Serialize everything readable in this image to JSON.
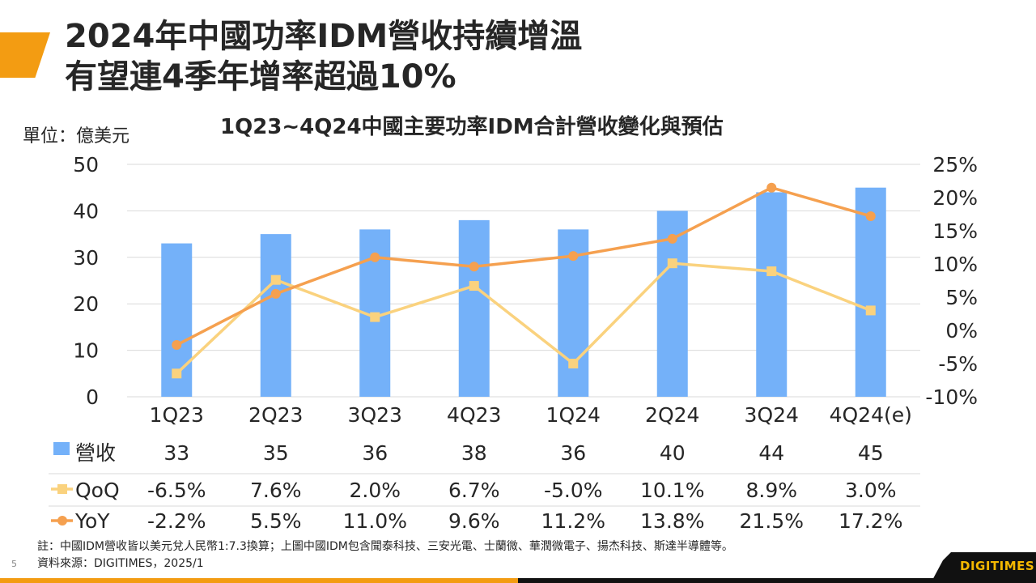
{
  "slide": {
    "title_line1": "2024年中國功率IDM營收持續增溫",
    "title_line2": "有望連4季年增率超過10%",
    "unit_label": "單位：億美元",
    "note": "註：中國IDM營收皆以美元兌人民幣1:7.3換算；上圖中國IDM包含聞泰科技、三安光電、士蘭微、華潤微電子、揚杰科技、斯達半導體等。",
    "source": "資料來源：DIGITIMES，2025/1",
    "page_number": "5",
    "logo": "DIGITIMES",
    "colors": {
      "accent": "#f39c12",
      "bar": "#74b1f9",
      "qoq": "#fad27e",
      "yoy": "#f5a04f"
    }
  },
  "chart_data": {
    "type": "bar",
    "title": "1Q23~4Q24中國主要功率IDM合計營收變化與預估",
    "categories": [
      "1Q23",
      "2Q23",
      "3Q23",
      "4Q23",
      "1Q24",
      "2Q24",
      "3Q24",
      "4Q24(e)"
    ],
    "ylabel": "單位：億美元",
    "ylim": [
      0,
      50
    ],
    "yticks": [
      "0",
      "10",
      "20",
      "30",
      "40",
      "50"
    ],
    "y2lim": [
      -10,
      25
    ],
    "y2ticks": [
      "-10%",
      "-5%",
      "0%",
      "5%",
      "10%",
      "15%",
      "20%",
      "25%"
    ],
    "grid": true,
    "series": [
      {
        "name": "營收",
        "type": "bar",
        "axis": "left",
        "values": [
          33,
          35,
          36,
          38,
          36,
          40,
          44,
          45
        ],
        "labels": [
          "33",
          "35",
          "36",
          "38",
          "36",
          "40",
          "44",
          "45"
        ]
      },
      {
        "name": "QoQ",
        "type": "line",
        "marker": "square",
        "axis": "right",
        "values": [
          -6.5,
          7.6,
          2.0,
          6.7,
          -5.0,
          10.1,
          8.9,
          3.0
        ],
        "labels": [
          "-6.5%",
          "7.6%",
          "2.0%",
          "6.7%",
          "-5.0%",
          "10.1%",
          "8.9%",
          "3.0%"
        ]
      },
      {
        "name": "YoY",
        "type": "line",
        "marker": "circle",
        "axis": "right",
        "values": [
          -2.2,
          5.5,
          11.0,
          9.6,
          11.2,
          13.8,
          21.5,
          17.2
        ],
        "labels": [
          "-2.2%",
          "5.5%",
          "11.0%",
          "9.6%",
          "11.2%",
          "13.8%",
          "21.5%",
          "17.2%"
        ]
      }
    ],
    "legend": "data-table-below"
  }
}
